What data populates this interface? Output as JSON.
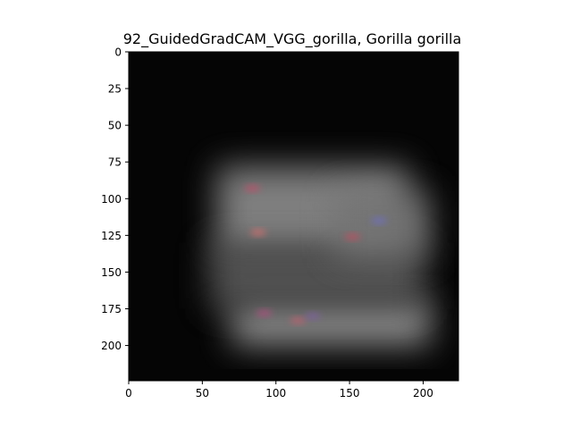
{
  "chart_data": {
    "type": "heatmap",
    "title": "92_GuidedGradCAM_VGG_gorilla, Gorilla gorilla",
    "xlabel": "",
    "ylabel": "",
    "xlim": [
      0,
      224
    ],
    "ylim": [
      224,
      0
    ],
    "x_ticks": [
      0,
      50,
      100,
      150,
      200
    ],
    "y_ticks": [
      0,
      25,
      50,
      75,
      100,
      125,
      150,
      175,
      200
    ],
    "image_size": [
      224,
      224
    ],
    "colormap": "grayscale saliency with faint red/blue highlights",
    "grid": false,
    "legend": "none",
    "bright_regions": [
      {
        "x": [
          60,
          190
        ],
        "y": [
          78,
          140
        ],
        "intensity": 0.55
      },
      {
        "x": [
          70,
          205
        ],
        "y": [
          168,
          200
        ],
        "intensity": 0.6
      },
      {
        "x": [
          55,
          200
        ],
        "y": [
          130,
          175
        ],
        "intensity": 0.35
      },
      {
        "x": [
          140,
          205
        ],
        "y": [
          95,
          140
        ],
        "intensity": 0.45
      }
    ],
    "highlight_points": [
      {
        "x": 84,
        "y": 93,
        "color": "#c0506a"
      },
      {
        "x": 88,
        "y": 123,
        "color": "#d47070"
      },
      {
        "x": 152,
        "y": 126,
        "color": "#c05060"
      },
      {
        "x": 170,
        "y": 115,
        "color": "#7070c0"
      },
      {
        "x": 92,
        "y": 178,
        "color": "#b05080"
      },
      {
        "x": 115,
        "y": 183,
        "color": "#c06070"
      },
      {
        "x": 125,
        "y": 180,
        "color": "#8060a0"
      }
    ]
  }
}
